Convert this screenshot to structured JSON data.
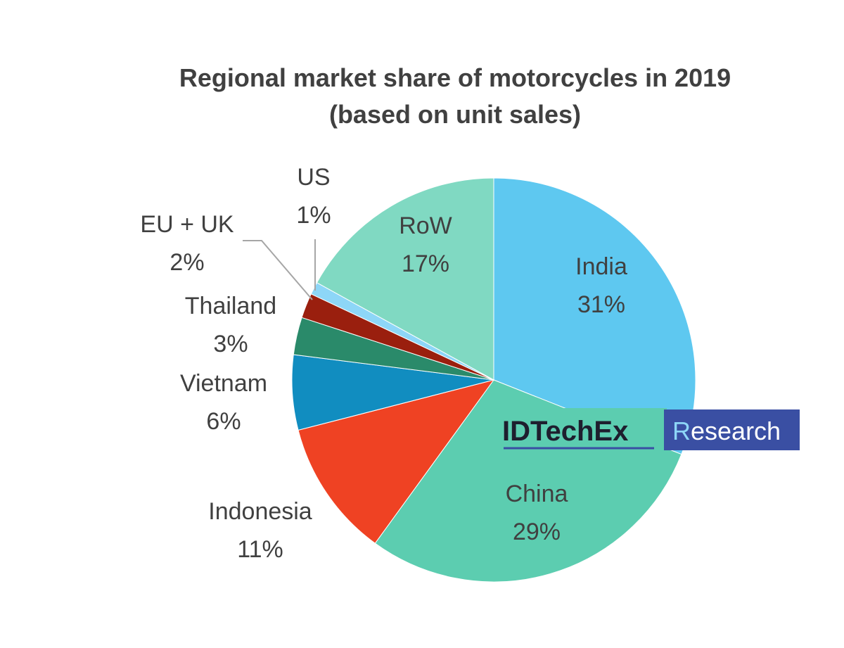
{
  "chart_data": {
    "type": "pie",
    "title": "Regional market share of motorcycles in 2019",
    "subtitle": "(based on unit sales)",
    "unit": "%",
    "slices": [
      {
        "label": "India",
        "value": 31,
        "display": "31%",
        "color": "#5ec8f0"
      },
      {
        "label": "China",
        "value": 29,
        "display": "29%",
        "color": "#5ccdb0"
      },
      {
        "label": "Indonesia",
        "value": 11,
        "display": "11%",
        "color": "#ef4223"
      },
      {
        "label": "Vietnam",
        "value": 6,
        "display": "6%",
        "color": "#118dc0"
      },
      {
        "label": "Thailand",
        "value": 3,
        "display": "3%",
        "color": "#2a8a6a"
      },
      {
        "label": "EU + UK",
        "value": 2,
        "display": "2%",
        "color": "#9a1f0e"
      },
      {
        "label": "US",
        "value": 1,
        "display": "1%",
        "color": "#8dd6f7"
      },
      {
        "label": "RoW",
        "value": 17,
        "display": "17%",
        "color": "#80d9c2"
      }
    ]
  },
  "watermark": {
    "brand": "IDTechEx",
    "suffix_initial": "R",
    "suffix_rest": "esearch",
    "box_color": "#3a4fa3",
    "initial_color": "#8dd6f7"
  }
}
